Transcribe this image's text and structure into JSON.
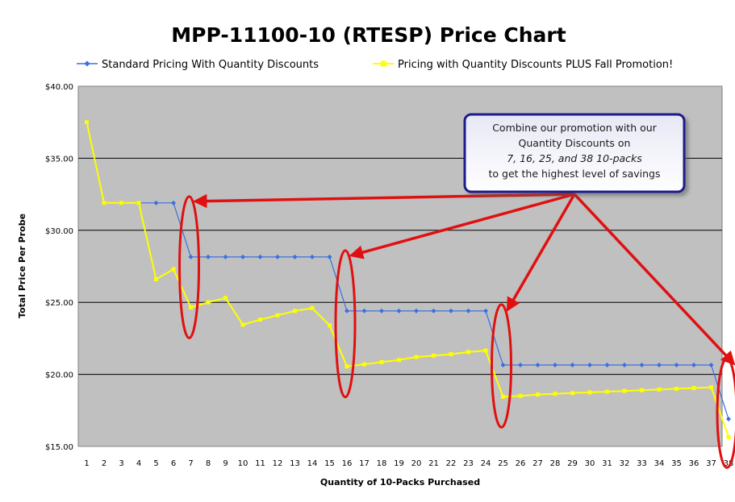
{
  "chart_data": {
    "type": "line",
    "title": "MPP-11100-10 (RTESP) Price Chart",
    "xlabel": "Quantity of 10-Packs Purchased",
    "ylabel": "Total Price Per Probe",
    "ylim": [
      15,
      40
    ],
    "yticks": [
      "$15.00",
      "$20.00",
      "$25.00",
      "$30.00",
      "$35.00",
      "$40.00"
    ],
    "ytick_values": [
      15,
      20,
      25,
      30,
      35,
      40
    ],
    "grid": true,
    "legend_position": "top",
    "categories": [
      "1",
      "2",
      "3",
      "4",
      "5",
      "6",
      "7",
      "8",
      "9",
      "10",
      "11",
      "12",
      "13",
      "14",
      "15",
      "16",
      "17",
      "18",
      "19",
      "20",
      "21",
      "22",
      "23",
      "24",
      "25",
      "26",
      "27",
      "28",
      "29",
      "30",
      "31",
      "32",
      "33",
      "34",
      "35",
      "36",
      "37",
      "38"
    ],
    "series": [
      {
        "name": "Standard Pricing With Quantity Discounts",
        "color": "#3b6fe0",
        "marker": "diamond",
        "values": [
          37.5,
          31.9,
          31.9,
          31.9,
          31.9,
          31.9,
          28.15,
          28.15,
          28.15,
          28.15,
          28.15,
          28.15,
          28.15,
          28.15,
          28.15,
          24.4,
          24.4,
          24.4,
          24.4,
          24.4,
          24.4,
          24.4,
          24.4,
          24.4,
          20.65,
          20.65,
          20.65,
          20.65,
          20.65,
          20.65,
          20.65,
          20.65,
          20.65,
          20.65,
          20.65,
          20.65,
          20.65,
          16.9
        ]
      },
      {
        "name": "Pricing with Quantity Discounts PLUS Fall Promotion!",
        "color": "#ffff00",
        "marker": "square",
        "values": [
          37.5,
          31.9,
          31.9,
          31.9,
          26.6,
          27.3,
          24.65,
          25.0,
          25.3,
          23.45,
          23.8,
          24.1,
          24.4,
          24.6,
          23.4,
          20.55,
          20.7,
          20.85,
          21.0,
          21.2,
          21.3,
          21.4,
          21.55,
          21.65,
          18.45,
          18.5,
          18.6,
          18.65,
          18.7,
          18.75,
          18.8,
          18.85,
          18.9,
          18.95,
          19.0,
          19.05,
          19.1,
          15.65
        ]
      }
    ],
    "annotations": {
      "callout": {
        "lines": [
          "Combine our promotion with our",
          "Quantity Discounts on",
          "7, 16, 25, and 38 10-packs",
          "to get the highest level of savings"
        ],
        "italic_line": 2
      },
      "highlighted_quantities": [
        7,
        16,
        25,
        38
      ]
    }
  },
  "colors": {
    "plot_background": "#c0c0c0",
    "arrow": "#e01010",
    "callout_border": "#1a1a8c"
  }
}
